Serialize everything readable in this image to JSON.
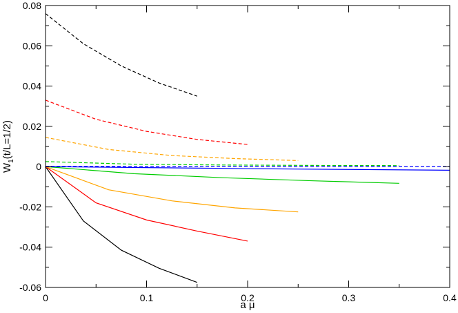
{
  "chart_data": {
    "type": "line",
    "xlabel": "a μ",
    "ylabel": "W",
    "ylabel_sub": "1",
    "ylabel_rest": "(t/L=1/2)",
    "xlim": [
      0,
      0.4
    ],
    "ylim": [
      -0.06,
      0.08
    ],
    "xticks": [
      {
        "value": 0,
        "label": "0"
      },
      {
        "value": 0.1,
        "label": "0.1"
      },
      {
        "value": 0.2,
        "label": "0.2"
      },
      {
        "value": 0.3,
        "label": "0.3"
      },
      {
        "value": 0.4,
        "label": "0.4"
      }
    ],
    "yticks": [
      {
        "value": -0.06,
        "label": "-0.06"
      },
      {
        "value": -0.04,
        "label": "-0.04"
      },
      {
        "value": -0.02,
        "label": "-0.02"
      },
      {
        "value": 0,
        "label": "0"
      },
      {
        "value": 0.02,
        "label": "0.02"
      },
      {
        "value": 0.04,
        "label": "0.04"
      },
      {
        "value": 0.06,
        "label": "0.06"
      },
      {
        "value": 0.08,
        "label": "0.08"
      }
    ],
    "grid": false,
    "series": [
      {
        "color": "#000000",
        "dash": true,
        "x": [
          0,
          0.0375,
          0.075,
          0.1125,
          0.15
        ],
        "y": [
          0.076,
          0.061,
          0.05,
          0.0415,
          0.035
        ]
      },
      {
        "color": "#ff0000",
        "dash": true,
        "x": [
          0,
          0.05,
          0.1,
          0.15,
          0.2
        ],
        "y": [
          0.033,
          0.0235,
          0.0175,
          0.0135,
          0.011
        ]
      },
      {
        "color": "#ffa500",
        "dash": true,
        "x": [
          0,
          0.0625,
          0.125,
          0.1875,
          0.25
        ],
        "y": [
          0.0145,
          0.0085,
          0.0055,
          0.004,
          0.003
        ]
      },
      {
        "color": "#00cc00",
        "dash": true,
        "x": [
          0,
          0.0875,
          0.175,
          0.2625,
          0.35
        ],
        "y": [
          0.0025,
          0.0012,
          0.0008,
          0.0006,
          0.0005
        ]
      },
      {
        "color": "#0000ff",
        "dash": true,
        "x": [
          0,
          0.1,
          0.2,
          0.3,
          0.4
        ],
        "y": [
          0.0002,
          0.0001,
          0.0001,
          0.0001,
          0.0001
        ]
      },
      {
        "color": "#000000",
        "dash": false,
        "x": [
          0,
          0.0375,
          0.075,
          0.1125,
          0.15
        ],
        "y": [
          0,
          -0.027,
          -0.0415,
          -0.0505,
          -0.0575
        ]
      },
      {
        "color": "#ff0000",
        "dash": false,
        "x": [
          0,
          0.05,
          0.1,
          0.15,
          0.2
        ],
        "y": [
          0,
          -0.018,
          -0.0265,
          -0.032,
          -0.037
        ]
      },
      {
        "color": "#ffa500",
        "dash": false,
        "x": [
          0,
          0.0625,
          0.125,
          0.1875,
          0.25
        ],
        "y": [
          0,
          -0.0115,
          -0.017,
          -0.0205,
          -0.0225
        ]
      },
      {
        "color": "#00cc00",
        "dash": false,
        "x": [
          0,
          0.0875,
          0.175,
          0.2625,
          0.35
        ],
        "y": [
          0,
          -0.0035,
          -0.0055,
          -0.007,
          -0.0083
        ]
      },
      {
        "color": "#0000ff",
        "dash": false,
        "x": [
          0,
          0.1,
          0.2,
          0.3,
          0.4
        ],
        "y": [
          0,
          -0.0005,
          -0.001,
          -0.0014,
          -0.0018
        ]
      }
    ]
  }
}
